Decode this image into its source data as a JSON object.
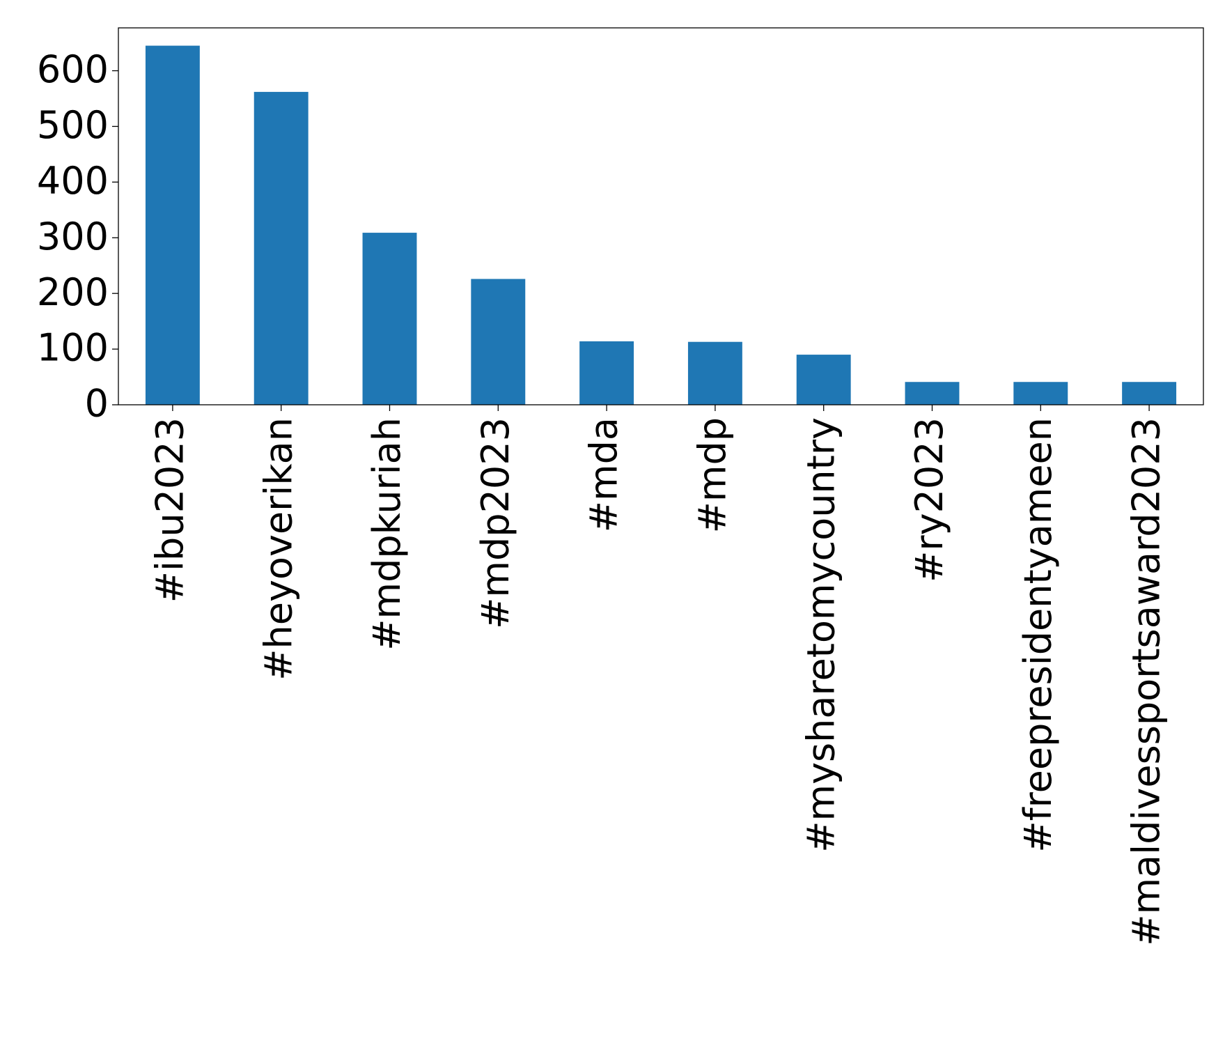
{
  "chart_data": {
    "type": "bar",
    "categories": [
      "#ibu2023",
      "#heyoverikan",
      "#mdpkuriah",
      "#mdp2023",
      "#mda",
      "#mdp",
      "#mysharetomycountry",
      "#ry2023",
      "#freepresidentyameen",
      "#maldivessportsaward2023"
    ],
    "values": [
      645,
      562,
      309,
      226,
      114,
      113,
      90,
      41,
      41,
      41
    ],
    "color": "#1f77b4",
    "ylim": [
      0,
      677
    ],
    "yticks": [
      0,
      100,
      200,
      300,
      400,
      500,
      600
    ],
    "grid": false
  }
}
